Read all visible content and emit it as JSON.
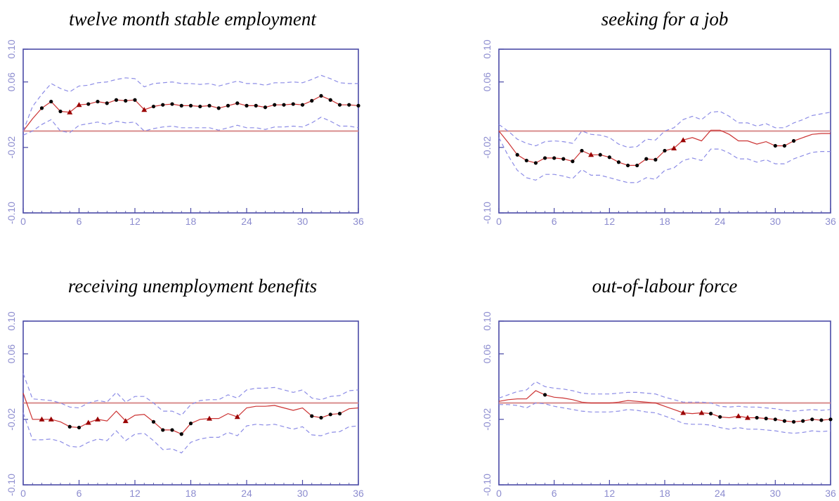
{
  "colors": {
    "axis": "#4a4aa6",
    "tick_text": "#8c8ccf",
    "estimate_line": "#cc3333",
    "confidence_band": "#8c8ce6",
    "zero_line": "#d98c8c",
    "significant_marker": "#000000",
    "marginal_marker": "#990000"
  },
  "chart_data": [
    {
      "type": "line",
      "title": "twelve month stable employment",
      "xlim": [
        0,
        36
      ],
      "ylim": [
        -0.1,
        0.1
      ],
      "xticks": [
        "0",
        "6",
        "12",
        "18",
        "24",
        "30",
        "36"
      ],
      "yticks": [
        "-0.10",
        "-0.02",
        "0.06",
        "0.10"
      ],
      "zero_line": 0,
      "x": [
        0,
        1,
        2,
        3,
        4,
        5,
        6,
        7,
        8,
        9,
        10,
        11,
        12,
        13,
        14,
        15,
        16,
        17,
        18,
        19,
        20,
        21,
        22,
        23,
        24,
        25,
        26,
        27,
        28,
        29,
        30,
        31,
        32,
        33,
        34,
        35,
        36
      ],
      "series": [
        {
          "role": "estimate",
          "values": [
            0.0,
            0.015,
            0.028,
            0.036,
            0.024,
            0.023,
            0.032,
            0.033,
            0.036,
            0.034,
            0.038,
            0.037,
            0.038,
            0.026,
            0.03,
            0.032,
            0.033,
            0.031,
            0.031,
            0.03,
            0.031,
            0.028,
            0.031,
            0.034,
            0.031,
            0.031,
            0.029,
            0.032,
            0.032,
            0.033,
            0.032,
            0.037,
            0.043,
            0.038,
            0.032,
            0.032,
            0.031
          ]
        },
        {
          "role": "upper",
          "values": [
            0.0,
            0.03,
            0.045,
            0.058,
            0.052,
            0.048,
            0.055,
            0.056,
            0.059,
            0.06,
            0.063,
            0.065,
            0.064,
            0.054,
            0.058,
            0.059,
            0.06,
            0.058,
            0.058,
            0.057,
            0.058,
            0.055,
            0.058,
            0.061,
            0.058,
            0.058,
            0.056,
            0.059,
            0.059,
            0.06,
            0.059,
            0.063,
            0.068,
            0.064,
            0.059,
            0.058,
            0.058
          ]
        },
        {
          "role": "lower",
          "values": [
            -0.005,
            0.0,
            0.008,
            0.014,
            0.0,
            -0.002,
            0.007,
            0.009,
            0.011,
            0.008,
            0.012,
            0.01,
            0.011,
            0.0,
            0.003,
            0.005,
            0.006,
            0.004,
            0.004,
            0.004,
            0.004,
            0.001,
            0.004,
            0.007,
            0.004,
            0.004,
            0.002,
            0.005,
            0.005,
            0.006,
            0.005,
            0.01,
            0.017,
            0.012,
            0.006,
            0.006,
            0.004
          ]
        }
      ],
      "markers": {
        "significant": [
          2,
          3,
          4,
          7,
          8,
          9,
          10,
          11,
          12,
          14,
          15,
          16,
          17,
          18,
          19,
          20,
          21,
          22,
          23,
          24,
          25,
          26,
          27,
          28,
          29,
          30,
          31,
          32,
          33,
          34,
          35,
          36
        ],
        "marginal": [
          5,
          6,
          13
        ]
      }
    },
    {
      "type": "line",
      "title": "seeking for a job",
      "xlim": [
        0,
        36
      ],
      "ylim": [
        -0.1,
        0.1
      ],
      "xticks": [
        "0",
        "6",
        "12",
        "18",
        "24",
        "30",
        "36"
      ],
      "yticks": [
        "-0.10",
        "-0.02",
        "0.06",
        "0.10"
      ],
      "zero_line": 0,
      "x": [
        0,
        1,
        2,
        3,
        4,
        5,
        6,
        7,
        8,
        9,
        10,
        11,
        12,
        13,
        14,
        15,
        16,
        17,
        18,
        19,
        20,
        21,
        22,
        23,
        24,
        25,
        26,
        27,
        28,
        29,
        30,
        31,
        32,
        33,
        34,
        35,
        36
      ],
      "series": [
        {
          "role": "estimate",
          "values": [
            0.0,
            -0.014,
            -0.029,
            -0.036,
            -0.039,
            -0.033,
            -0.033,
            -0.034,
            -0.037,
            -0.024,
            -0.029,
            -0.029,
            -0.032,
            -0.038,
            -0.042,
            -0.042,
            -0.034,
            -0.035,
            -0.024,
            -0.021,
            -0.011,
            -0.008,
            -0.012,
            0.001,
            0.001,
            -0.004,
            -0.012,
            -0.012,
            -0.016,
            -0.013,
            -0.018,
            -0.018,
            -0.012,
            -0.008,
            -0.004,
            -0.003,
            -0.003
          ]
        },
        {
          "role": "upper",
          "values": [
            0.008,
            0.0,
            -0.01,
            -0.015,
            -0.018,
            -0.013,
            -0.012,
            -0.013,
            -0.015,
            0.0,
            -0.004,
            -0.005,
            -0.008,
            -0.016,
            -0.02,
            -0.019,
            -0.01,
            -0.011,
            0.0,
            0.004,
            0.014,
            0.018,
            0.014,
            0.023,
            0.024,
            0.018,
            0.01,
            0.01,
            0.006,
            0.009,
            0.004,
            0.004,
            0.01,
            0.014,
            0.019,
            0.021,
            0.023
          ]
        },
        {
          "role": "lower",
          "values": [
            -0.008,
            -0.03,
            -0.048,
            -0.057,
            -0.06,
            -0.053,
            -0.053,
            -0.055,
            -0.058,
            -0.047,
            -0.054,
            -0.054,
            -0.057,
            -0.06,
            -0.063,
            -0.063,
            -0.057,
            -0.059,
            -0.048,
            -0.045,
            -0.036,
            -0.033,
            -0.036,
            -0.022,
            -0.022,
            -0.027,
            -0.034,
            -0.034,
            -0.038,
            -0.035,
            -0.04,
            -0.04,
            -0.034,
            -0.03,
            -0.026,
            -0.025,
            -0.025
          ]
        }
      ],
      "markers": {
        "significant": [
          2,
          3,
          4,
          5,
          6,
          7,
          8,
          9,
          11,
          12,
          13,
          14,
          15,
          16,
          17,
          18,
          30,
          31,
          32
        ],
        "marginal": [
          10,
          19,
          20
        ]
      }
    },
    {
      "type": "line",
      "title": "receiving unemployment benefits",
      "xlim": [
        0,
        36
      ],
      "ylim": [
        -0.1,
        0.1
      ],
      "xticks": [
        "0",
        "6",
        "12",
        "18",
        "24",
        "30",
        "36"
      ],
      "yticks": [
        "-0.10",
        "-0.02",
        "0.06",
        "0.10"
      ],
      "zero_line": 0,
      "x": [
        0,
        1,
        2,
        3,
        4,
        5,
        6,
        7,
        8,
        9,
        10,
        11,
        12,
        13,
        14,
        15,
        16,
        17,
        18,
        19,
        20,
        21,
        22,
        23,
        24,
        25,
        26,
        27,
        28,
        29,
        30,
        31,
        32,
        33,
        34,
        35,
        36
      ],
      "series": [
        {
          "role": "estimate",
          "values": [
            0.012,
            -0.02,
            -0.02,
            -0.02,
            -0.023,
            -0.029,
            -0.03,
            -0.024,
            -0.02,
            -0.022,
            -0.01,
            -0.022,
            -0.015,
            -0.014,
            -0.023,
            -0.033,
            -0.033,
            -0.038,
            -0.025,
            -0.02,
            -0.019,
            -0.019,
            -0.013,
            -0.017,
            -0.006,
            -0.004,
            -0.004,
            -0.003,
            -0.006,
            -0.009,
            -0.006,
            -0.016,
            -0.018,
            -0.014,
            -0.013,
            -0.007,
            -0.006
          ]
        },
        {
          "role": "upper",
          "values": [
            0.036,
            0.005,
            0.004,
            0.003,
            0.0,
            -0.005,
            -0.006,
            0.0,
            0.003,
            0.001,
            0.013,
            0.001,
            0.008,
            0.008,
            0.0,
            -0.01,
            -0.01,
            -0.015,
            -0.002,
            0.003,
            0.004,
            0.004,
            0.01,
            0.006,
            0.016,
            0.018,
            0.018,
            0.019,
            0.016,
            0.013,
            0.016,
            0.006,
            0.004,
            0.008,
            0.009,
            0.015,
            0.016
          ]
        },
        {
          "role": "lower",
          "values": [
            -0.012,
            -0.045,
            -0.045,
            -0.044,
            -0.047,
            -0.053,
            -0.054,
            -0.048,
            -0.044,
            -0.046,
            -0.034,
            -0.046,
            -0.038,
            -0.037,
            -0.046,
            -0.057,
            -0.056,
            -0.061,
            -0.048,
            -0.044,
            -0.042,
            -0.042,
            -0.036,
            -0.04,
            -0.028,
            -0.026,
            -0.027,
            -0.026,
            -0.029,
            -0.032,
            -0.029,
            -0.039,
            -0.04,
            -0.036,
            -0.035,
            -0.029,
            -0.028
          ]
        }
      ],
      "markers": {
        "significant": [
          5,
          6,
          14,
          15,
          16,
          17,
          18,
          31,
          32,
          33,
          34
        ],
        "marginal": [
          2,
          3,
          7,
          8,
          11,
          20,
          23
        ]
      }
    },
    {
      "type": "line",
      "title": "out-of-labour force",
      "xlim": [
        0,
        36
      ],
      "ylim": [
        -0.1,
        0.1
      ],
      "xticks": [
        "0",
        "6",
        "12",
        "18",
        "24",
        "30",
        "36"
      ],
      "yticks": [
        "-0.10",
        "-0.02",
        "0.06",
        "0.10"
      ],
      "zero_line": 0,
      "x": [
        0,
        1,
        2,
        3,
        4,
        5,
        6,
        7,
        8,
        9,
        10,
        11,
        12,
        13,
        14,
        15,
        16,
        17,
        18,
        19,
        20,
        21,
        22,
        23,
        24,
        25,
        26,
        27,
        28,
        29,
        30,
        31,
        32,
        33,
        34,
        35,
        36
      ],
      "series": [
        {
          "role": "estimate",
          "values": [
            0.002,
            0.004,
            0.005,
            0.005,
            0.015,
            0.01,
            0.007,
            0.006,
            0.004,
            0.001,
            0.0,
            0.0,
            0.0,
            0.001,
            0.003,
            0.002,
            0.001,
            0.0,
            -0.004,
            -0.008,
            -0.012,
            -0.013,
            -0.012,
            -0.013,
            -0.017,
            -0.018,
            -0.016,
            -0.018,
            -0.018,
            -0.019,
            -0.02,
            -0.022,
            -0.023,
            -0.022,
            -0.02,
            -0.021,
            -0.02
          ]
        },
        {
          "role": "upper",
          "values": [
            0.006,
            0.01,
            0.014,
            0.016,
            0.026,
            0.02,
            0.018,
            0.017,
            0.015,
            0.012,
            0.011,
            0.011,
            0.011,
            0.012,
            0.013,
            0.013,
            0.012,
            0.011,
            0.007,
            0.004,
            0.001,
            0.001,
            0.001,
            0.0,
            -0.004,
            -0.005,
            -0.004,
            -0.005,
            -0.005,
            -0.006,
            -0.007,
            -0.009,
            -0.01,
            -0.009,
            -0.008,
            -0.009,
            -0.008
          ]
        },
        {
          "role": "lower",
          "values": [
            -0.002,
            -0.002,
            -0.003,
            -0.006,
            0.0,
            -0.001,
            -0.004,
            -0.006,
            -0.008,
            -0.01,
            -0.011,
            -0.011,
            -0.011,
            -0.01,
            -0.008,
            -0.009,
            -0.011,
            -0.012,
            -0.016,
            -0.02,
            -0.025,
            -0.026,
            -0.026,
            -0.027,
            -0.03,
            -0.032,
            -0.03,
            -0.032,
            -0.032,
            -0.033,
            -0.034,
            -0.036,
            -0.037,
            -0.036,
            -0.034,
            -0.035,
            -0.034
          ]
        }
      ],
      "markers": {
        "significant": [
          5,
          23,
          24,
          28,
          29,
          30,
          31,
          32,
          33,
          34,
          35,
          36
        ],
        "marginal": [
          20,
          22,
          26,
          27
        ]
      }
    }
  ]
}
